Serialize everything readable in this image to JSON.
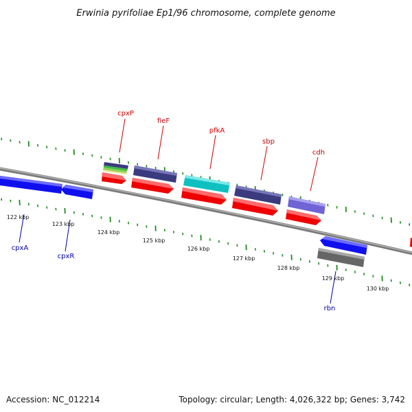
{
  "title": "Erwinia pyrifoliae Ep1/96 chromosome, complete genome",
  "footer": {
    "accession": "Accession: NC_012214",
    "summary": "Topology: circular; Length: 4,026,322 bp; Genes: 3,742"
  },
  "scale_labels": [
    "122 kbp",
    "123 kbp",
    "124 kbp",
    "125 kbp",
    "126 kbp",
    "127 kbp",
    "128 kbp",
    "129 kbp",
    "130 kbp"
  ],
  "gene_labels": {
    "top": [
      "cpxP",
      "fieF",
      "pfkA",
      "sbp",
      "cdh"
    ],
    "bottom": [
      "cpxA",
      "cpxR",
      "rbn"
    ]
  },
  "colors": {
    "plus_strand_label": "#cc0000",
    "minus_strand_label": "#0000aa",
    "backbone": "#808080",
    "tick": "#1e8a1e",
    "cds_red": "#ee0000",
    "cds_blue": "#1010ee",
    "cds_navy": "#3a3a7e",
    "cds_cyan": "#10c0c0",
    "cds_lavender": "#6f63d6",
    "cds_gray": "#666666"
  }
}
